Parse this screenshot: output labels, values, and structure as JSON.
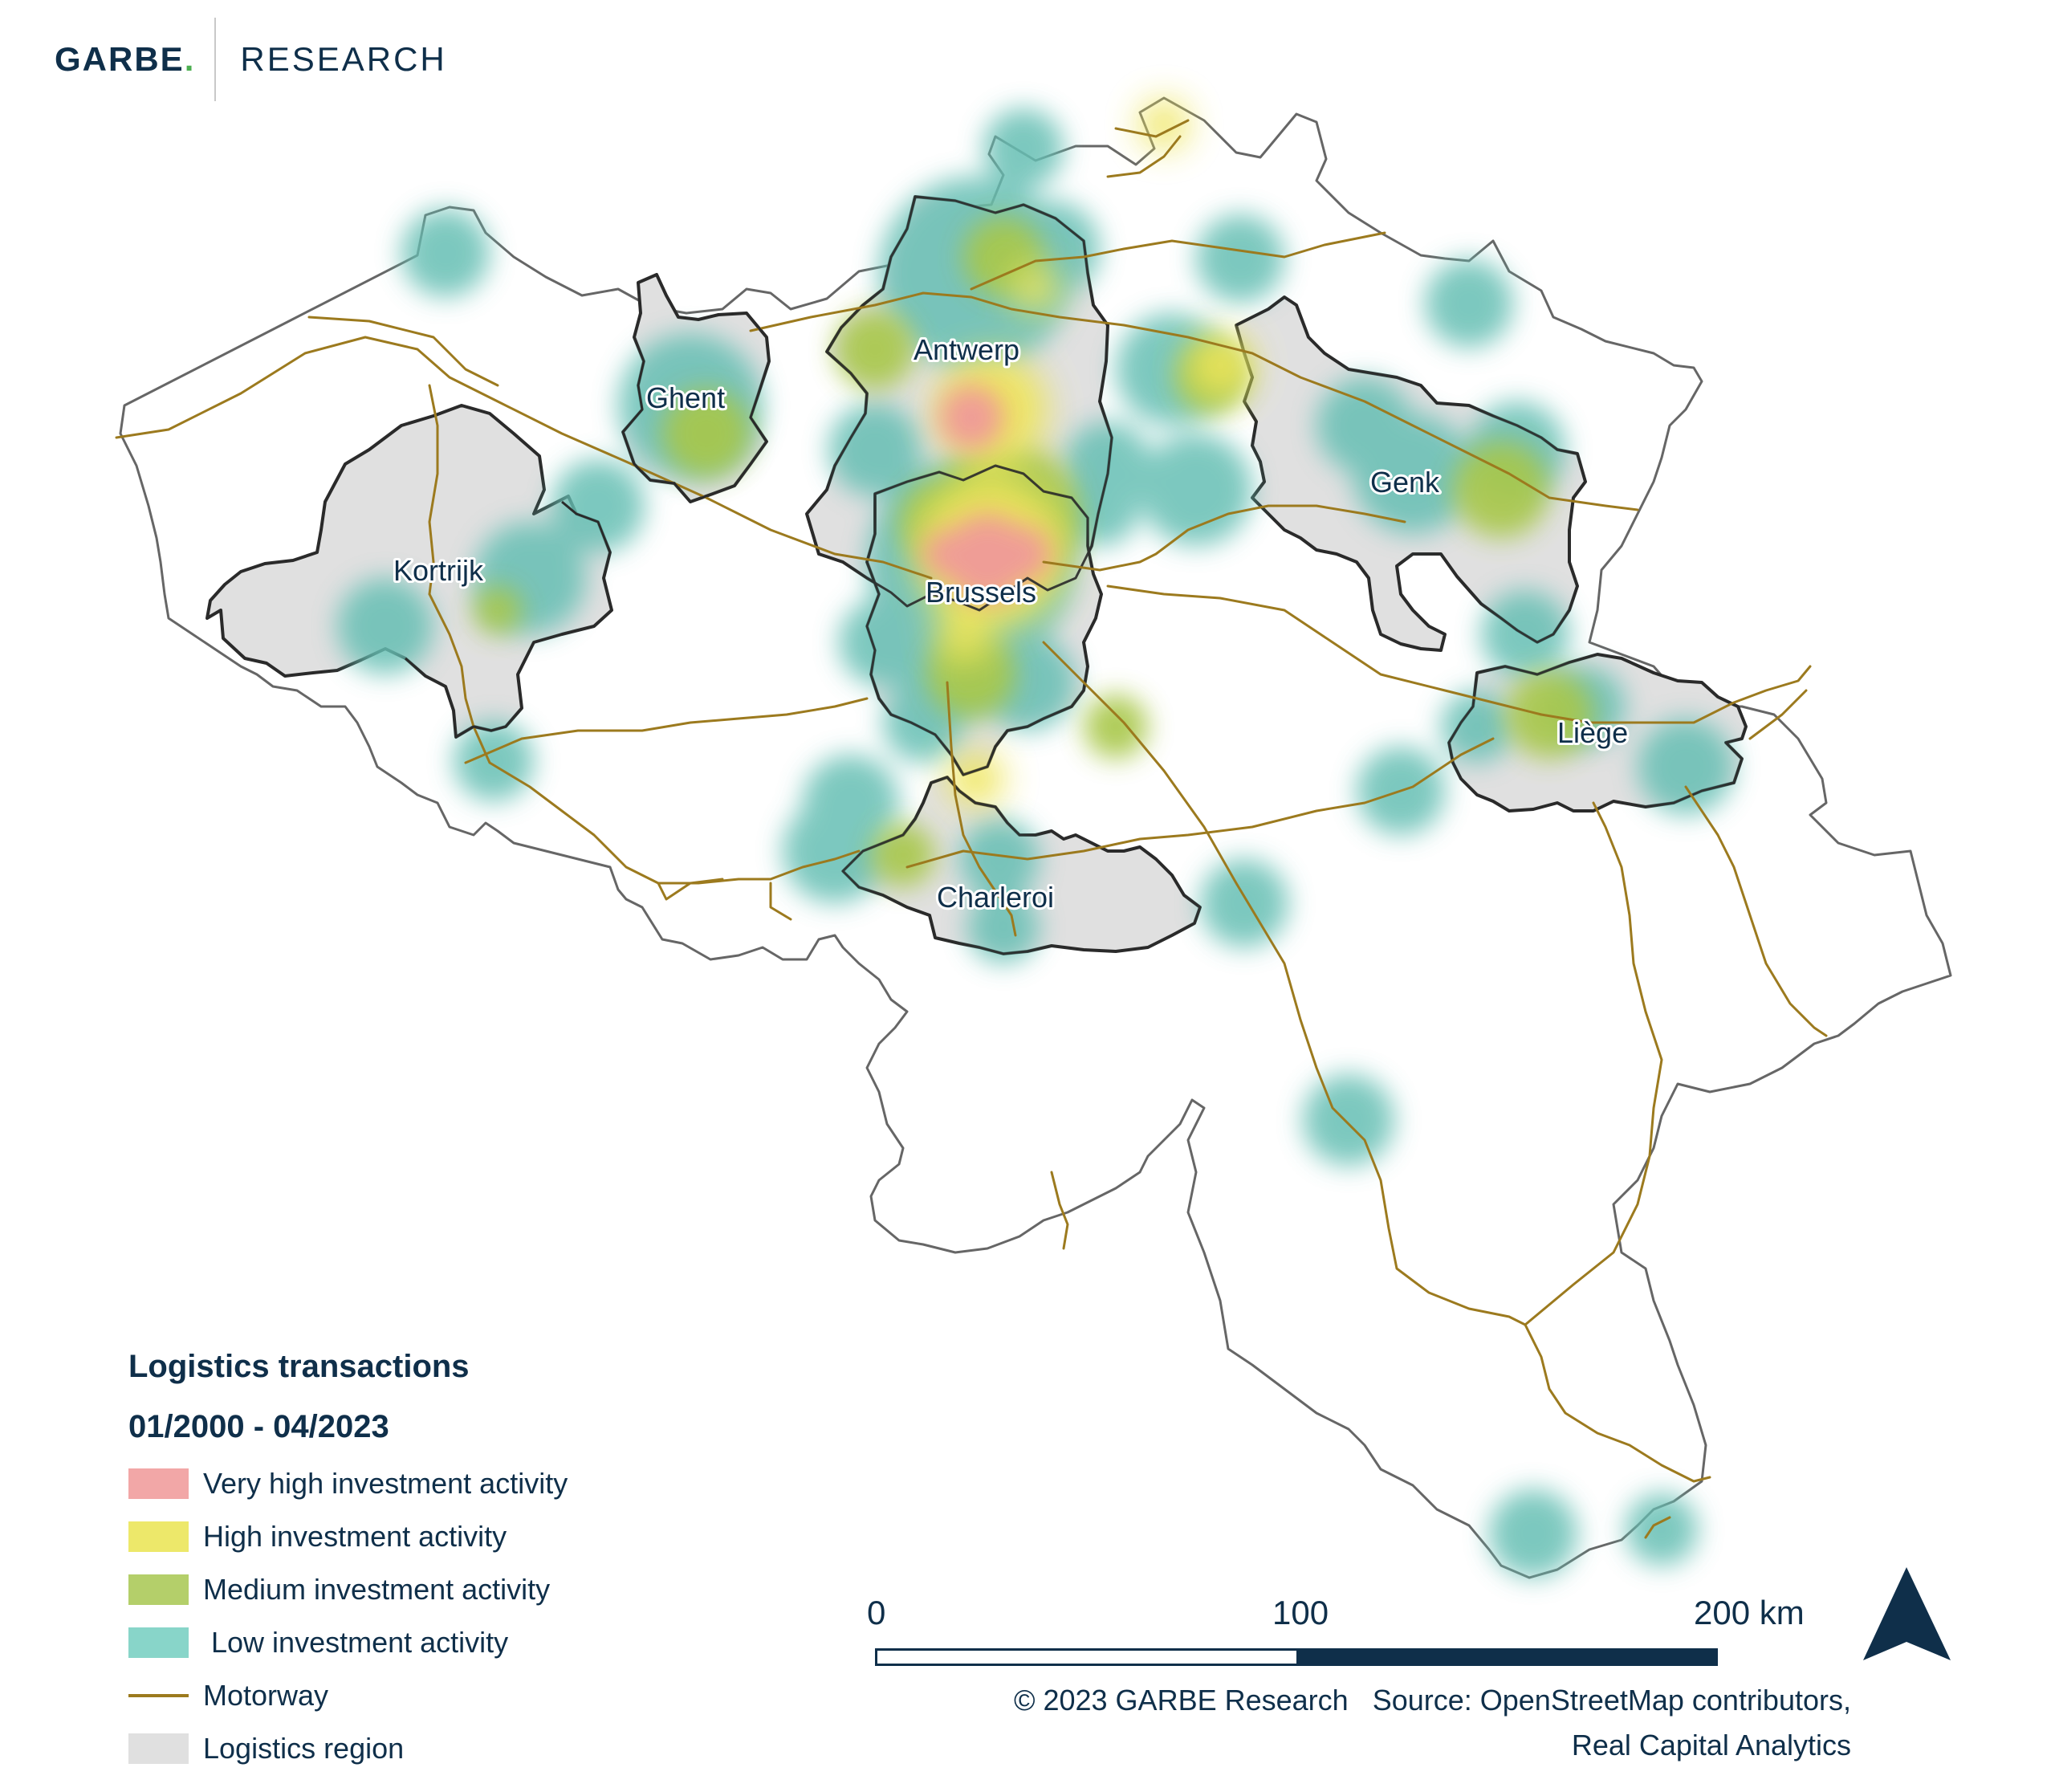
{
  "header": {
    "brand": "GARBE",
    "brand_dot": ".",
    "department": "RESEARCH"
  },
  "map": {
    "cities": [
      {
        "name": "Antwerp"
      },
      {
        "name": "Ghent"
      },
      {
        "name": "Kortrijk"
      },
      {
        "name": "Brussels"
      },
      {
        "name": "Genk"
      },
      {
        "name": "Liège"
      },
      {
        "name": "Charleroi"
      }
    ]
  },
  "legend": {
    "title": "Logistics transactions",
    "period": "01/2000 - 04/2023",
    "items": [
      {
        "label": "Very high investment activity",
        "color": "#f2a7a7"
      },
      {
        "label": "High investment activity",
        "color": "#ede86a"
      },
      {
        "label": "Medium investment activity",
        "color": "#b4cf6a"
      },
      {
        "label": " Low investment activity",
        "color": "#88d5c9"
      },
      {
        "label": "Motorway",
        "color": "#9c7a1e"
      },
      {
        "label": "Logistics region",
        "color": "#e0e0e0"
      }
    ]
  },
  "scale_bar": {
    "labels": [
      "0",
      "100",
      "200 km"
    ]
  },
  "footer": {
    "copyright": "© 2023 GARBE Research",
    "source_line1": "Source: OpenStreetMap contributors,",
    "source_line2": "Real Capital Analytics"
  },
  "colors": {
    "brand_navy": "#0f2f4a",
    "brand_green": "#4caf50"
  }
}
